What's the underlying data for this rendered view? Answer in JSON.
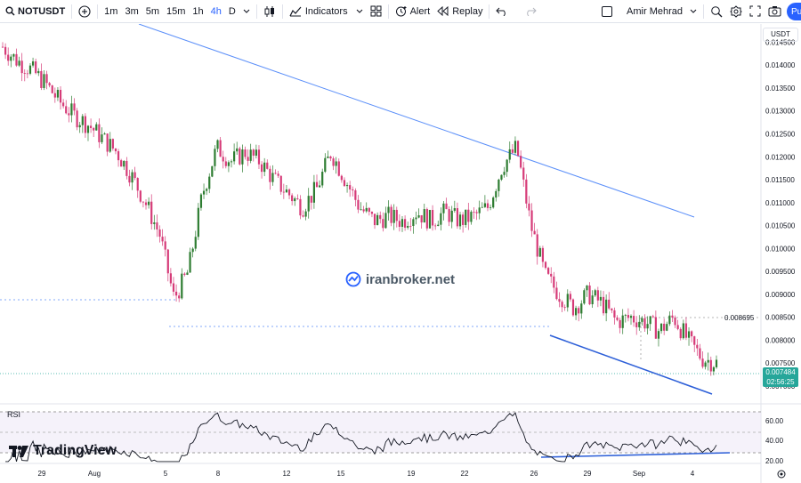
{
  "toolbar": {
    "symbol": "NOTUSDT",
    "intervals": [
      "1m",
      "3m",
      "5m",
      "15m",
      "1h",
      "4h",
      "D"
    ],
    "active_interval": "4h",
    "indicators_label": "Indicators",
    "alert_label": "Alert",
    "replay_label": "Replay",
    "user_name": "Amir Mehrad",
    "publish_label": "Pu"
  },
  "price_axis": {
    "currency": "USDT",
    "ticks": [
      "0.014500",
      "0.014000",
      "0.013500",
      "0.013000",
      "0.012500",
      "0.012000",
      "0.011500",
      "0.011000",
      "0.010500",
      "0.010000",
      "0.009500",
      "0.009000",
      "0.008500",
      "0.008000",
      "0.007500",
      "0.007000"
    ],
    "current_price": "0.007484",
    "countdown": "02:56:25",
    "marked_level": "0.008695"
  },
  "rsi": {
    "label": "RSI",
    "ticks": [
      "60.00",
      "40.00",
      "20.00"
    ]
  },
  "time_axis": {
    "ticks": [
      "29",
      "Aug",
      "5",
      "8",
      "12",
      "15",
      "19",
      "22",
      "26",
      "29",
      "Sep",
      "4"
    ]
  },
  "watermark": "iranbroker.net",
  "brand": "TradingView",
  "colors": {
    "up": "#26a69a",
    "down": "#ef5350",
    "bull": "#2e7d32",
    "bear": "#d63b78",
    "trend": "#5b8ff9",
    "support": "#2d5fd8"
  },
  "chart_data": {
    "type": "candlestick",
    "symbol": "NOTUSDT",
    "ylim": [
      0.0069,
      0.0148
    ],
    "price_path": [
      0.0144,
      0.0141,
      0.0139,
      0.0136,
      0.0132,
      0.0129,
      0.0127,
      0.0124,
      0.0121,
      0.0116,
      0.011,
      0.0103,
      0.0089,
      0.0095,
      0.0112,
      0.0122,
      0.0119,
      0.0121,
      0.0119,
      0.0115,
      0.0112,
      0.0109,
      0.0113,
      0.0121,
      0.0115,
      0.0109,
      0.0106,
      0.0107,
      0.0106,
      0.0108,
      0.0106,
      0.0108,
      0.0106,
      0.0107,
      0.0109,
      0.0118,
      0.0122,
      0.0105,
      0.0094,
      0.009,
      0.0087,
      0.009,
      0.0088,
      0.0084,
      0.0085,
      0.0084,
      0.0082,
      0.0085,
      0.008,
      0.0076,
      0.0075
    ],
    "trendline_resistance": [
      [
        0.0152,
        0.0109
      ]
    ],
    "trendline_support": [
      [
        0.0083,
        0.0071
      ]
    ],
    "rsi_ylim": [
      20,
      80
    ]
  }
}
